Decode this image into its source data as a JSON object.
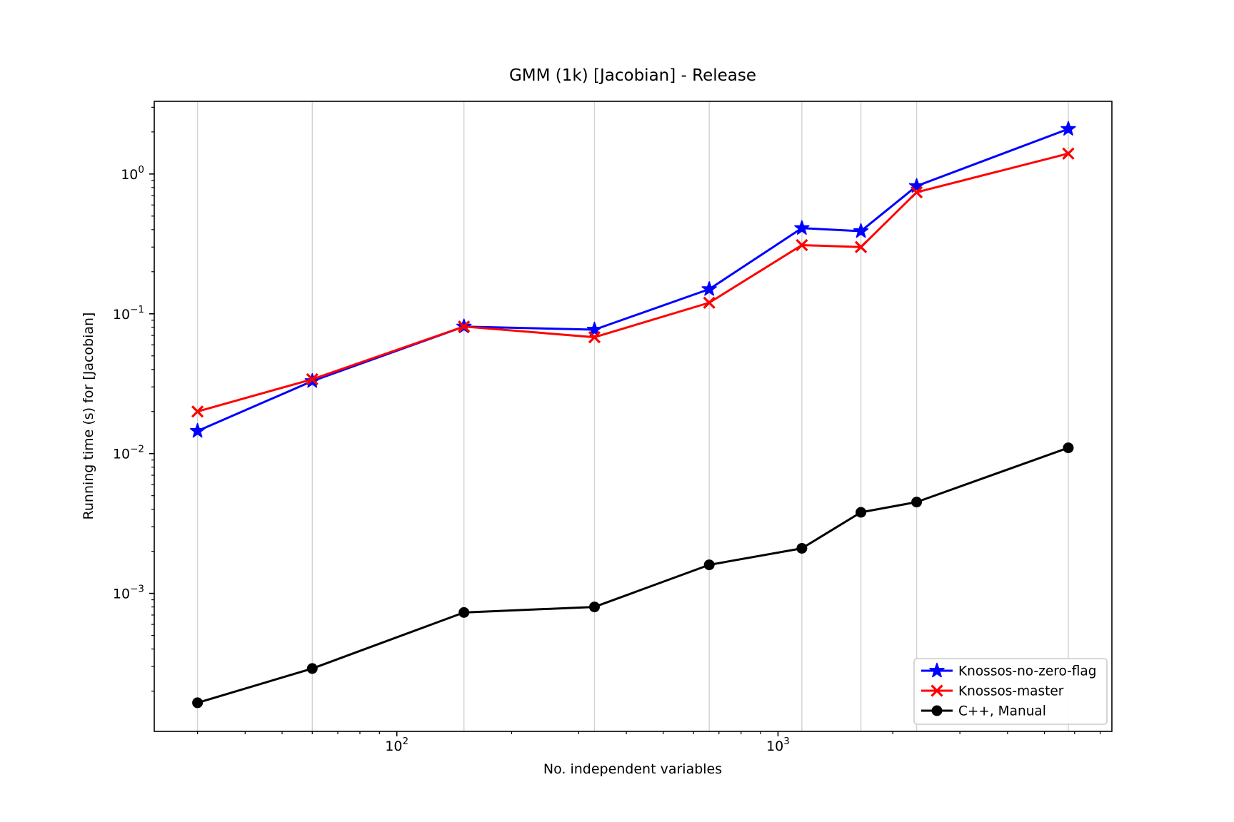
{
  "title": "GMM (1k) [Jacobian] - Release",
  "chart_data": {
    "type": "line",
    "title": "GMM (1k) [Jacobian] - Release",
    "xlabel": "No. independent variables",
    "ylabel": "Running time (s) for [Jacobian]",
    "xscale": "log",
    "yscale": "log",
    "x": [
      30,
      60,
      150,
      330,
      660,
      1155,
      1650,
      2310,
      5775
    ],
    "series": [
      {
        "name": "Knossos-no-zero-flag",
        "color": "#0000ff",
        "marker": "star",
        "values": [
          0.0145,
          0.033,
          0.081,
          0.077,
          0.15,
          0.41,
          0.39,
          0.82,
          2.1
        ]
      },
      {
        "name": "Knossos-master",
        "color": "#ff0000",
        "marker": "x",
        "values": [
          0.02,
          0.034,
          0.081,
          0.068,
          0.12,
          0.31,
          0.3,
          0.74,
          1.4
        ]
      },
      {
        "name": "C++, Manual",
        "color": "#000000",
        "marker": "circle",
        "values": [
          0.000165,
          0.00029,
          0.00073,
          0.0008,
          0.0016,
          0.0021,
          0.0038,
          0.0045,
          0.011
        ]
      }
    ],
    "xlim": [
      23.1,
      7514
    ],
    "ylim": [
      0.000103,
      3.31
    ],
    "x_tick_exponents": [
      2,
      3
    ],
    "y_tick_exponents": [
      0,
      -1,
      -2,
      -3
    ],
    "grid": "vertical-lines-at-data-x",
    "grid_color": "#d2d2d2",
    "legend_position": "lower right",
    "legend_entries": [
      "Knossos-no-zero-flag",
      "Knossos-master",
      "C++, Manual"
    ]
  }
}
